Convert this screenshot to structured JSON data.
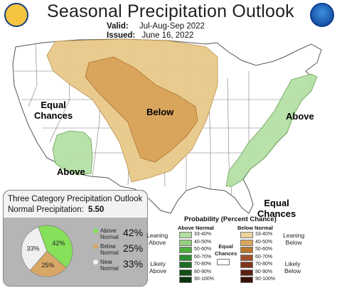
{
  "header": {
    "title": "Seasonal Precipitation Outlook",
    "valid_label": "Valid:",
    "valid_value": "Jul-Aug-Sep 2022",
    "issued_label": "Issued:",
    "issued_value": "June 16, 2022"
  },
  "map_labels": {
    "equal_chances_west_1": "Equal",
    "equal_chances_west_2": "Chances",
    "below": "Below",
    "above_east": "Above",
    "above_southwest": "Above",
    "equal_chances_se_1": "Equal",
    "equal_chances_se_2": "Chances"
  },
  "inset": {
    "title": "Three Category Precipitation Outlook",
    "normal_label": "Normal Precipitation:",
    "normal_value": "5.50",
    "slices": [
      {
        "label_1": "Above",
        "label_2": "Normal",
        "value": 42,
        "display": "42%",
        "color": "#86e05a"
      },
      {
        "label_1": "Below",
        "label_2": "Normal",
        "value": 25,
        "display": "25%",
        "color": "#d9a867"
      },
      {
        "label_1": "Near",
        "label_2": "Normal",
        "value": 33,
        "display": "33%",
        "color": "#f0f0f0"
      }
    ]
  },
  "legend": {
    "title": "Probability (Percent Chance)",
    "above_header": "Above Normal",
    "below_header": "Below Normal",
    "leaning_above_1": "Leaning",
    "leaning_above_2": "Above",
    "likely_above_1": "Likely",
    "likely_above_2": "Above",
    "leaning_below_1": "Leaning",
    "leaning_below_2": "Below",
    "likely_below_1": "Likely",
    "likely_below_2": "Below",
    "equal_1": "Equal",
    "equal_2": "Chances",
    "above_bins": [
      {
        "range": "33-40%",
        "color": "#b3dfa0"
      },
      {
        "range": "40-50%",
        "color": "#93cf7f"
      },
      {
        "range": "50-60%",
        "color": "#4cae3c"
      },
      {
        "range": "60-70%",
        "color": "#2e8b2e"
      },
      {
        "range": "70-80%",
        "color": "#1e6b22"
      },
      {
        "range": "80-90%",
        "color": "#145018"
      },
      {
        "range": "90-100%",
        "color": "#0a340f"
      }
    ],
    "below_bins": [
      {
        "range": "33-40%",
        "color": "#edd39a"
      },
      {
        "range": "40-50%",
        "color": "#d9a75c"
      },
      {
        "range": "50-60%",
        "color": "#b9772e"
      },
      {
        "range": "60-70%",
        "color": "#a0522d"
      },
      {
        "range": "70-80%",
        "color": "#7f3518"
      },
      {
        "range": "80-90%",
        "color": "#5c2010"
      },
      {
        "range": "90-100%",
        "color": "#3a1208"
      }
    ]
  },
  "colors": {
    "below_light": "#e8c98a",
    "below_dark": "#d9a35a",
    "above_light": "#b6e0a6"
  }
}
